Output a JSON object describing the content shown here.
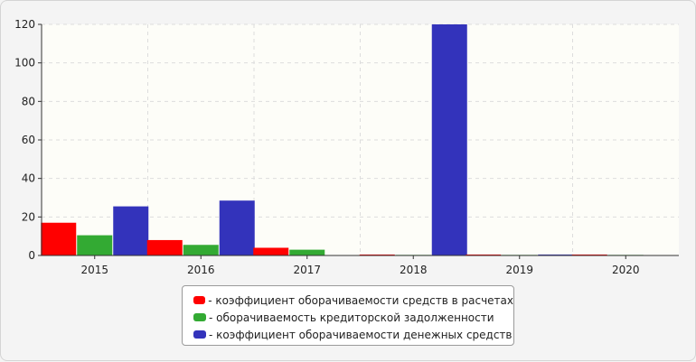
{
  "chart_data": {
    "type": "bar",
    "categories": [
      "2015",
      "2016",
      "2017",
      "2018",
      "2019",
      "2020"
    ],
    "series": [
      {
        "name": "- коэффициент оборачиваемости средств в расчетах",
        "color": "#ff0000",
        "values": [
          17,
          8,
          4,
          0.5,
          0.5,
          0.5
        ]
      },
      {
        "name": "- оборачиваемость кредиторской задолженности",
        "color": "#33aa33",
        "values": [
          10.5,
          5.5,
          3,
          0.3,
          0.3,
          0.3
        ]
      },
      {
        "name": "- коэффициент оборачиваемости денежных средств",
        "color": "#3333bb",
        "values": [
          25.5,
          28.5,
          0,
          120,
          0.5,
          0
        ]
      }
    ],
    "ylim": [
      0,
      120
    ],
    "yticks": [
      0,
      20,
      40,
      60,
      80,
      100,
      120
    ],
    "grid": true,
    "legend_position": "bottom"
  }
}
